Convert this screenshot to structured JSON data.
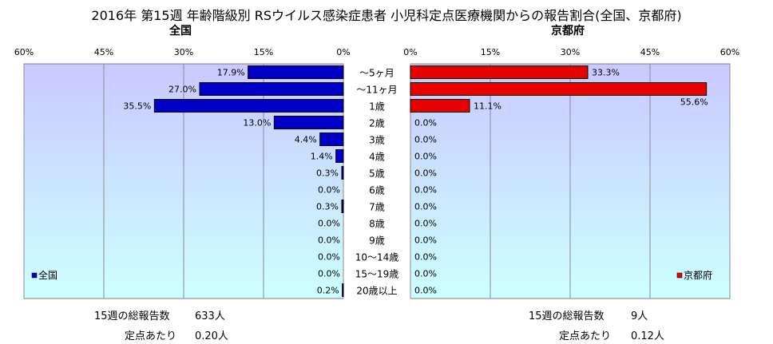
{
  "title": "2016年 第15週 年齢階級別 RSウイルス感染症患者 小児科定点医療機関からの報告割合(全国、京都府)",
  "colors": {
    "national": "#0000c8",
    "kyoto": "#e60000",
    "plot_top": "#c9c9ff",
    "plot_bottom": "#ccffff"
  },
  "chart_data": [
    {
      "type": "bar",
      "subtitle": "全国",
      "legend": "全国",
      "legend_position": "bottom-left",
      "orientation": "horizontal-reversed",
      "xlim": [
        0,
        60
      ],
      "ticks": [
        "60%",
        "45%",
        "30%",
        "15%",
        "0%"
      ],
      "categories": [
        "～5ヶ月",
        "～11ヶ月",
        "1歳",
        "2歳",
        "3歳",
        "4歳",
        "5歳",
        "6歳",
        "7歳",
        "8歳",
        "9歳",
        "10～14歳",
        "15～19歳",
        "20歳以上"
      ],
      "values": [
        17.9,
        27.0,
        35.5,
        13.0,
        4.4,
        1.4,
        0.3,
        0.0,
        0.3,
        0.0,
        0.0,
        0.0,
        0.0,
        0.2
      ],
      "value_labels": [
        "17.9%",
        "27.0%",
        "35.5%",
        "13.0%",
        "4.4%",
        "1.4%",
        "0.3%",
        "0.0%",
        "0.3%",
        "0.0%",
        "0.0%",
        "0.0%",
        "0.0%",
        "0.2%"
      ]
    },
    {
      "type": "bar",
      "subtitle": "京都府",
      "legend": "京都府",
      "legend_position": "bottom-right",
      "orientation": "horizontal",
      "xlim": [
        0,
        60
      ],
      "ticks": [
        "0%",
        "15%",
        "30%",
        "45%",
        "60%"
      ],
      "categories": [
        "～5ヶ月",
        "～11ヶ月",
        "1歳",
        "2歳",
        "3歳",
        "4歳",
        "5歳",
        "6歳",
        "7歳",
        "8歳",
        "9歳",
        "10～14歳",
        "15～19歳",
        "20歳以上"
      ],
      "values": [
        33.3,
        55.6,
        11.1,
        0.0,
        0.0,
        0.0,
        0.0,
        0.0,
        0.0,
        0.0,
        0.0,
        0.0,
        0.0,
        0.0
      ],
      "value_labels": [
        "33.3%",
        "55.6%",
        "11.1%",
        "0.0%",
        "0.0%",
        "0.0%",
        "0.0%",
        "0.0%",
        "0.0%",
        "0.0%",
        "0.0%",
        "0.0%",
        "0.0%",
        "0.0%"
      ]
    }
  ],
  "stats": {
    "national_total_label": "15週の総報告数",
    "national_total_value": "633人",
    "national_per_label": "定点あたり",
    "national_per_value": "0.20人",
    "kyoto_total_label": "15週の総報告数",
    "kyoto_total_value": "9人",
    "kyoto_per_label": "定点あたり",
    "kyoto_per_value": "0.12人"
  }
}
